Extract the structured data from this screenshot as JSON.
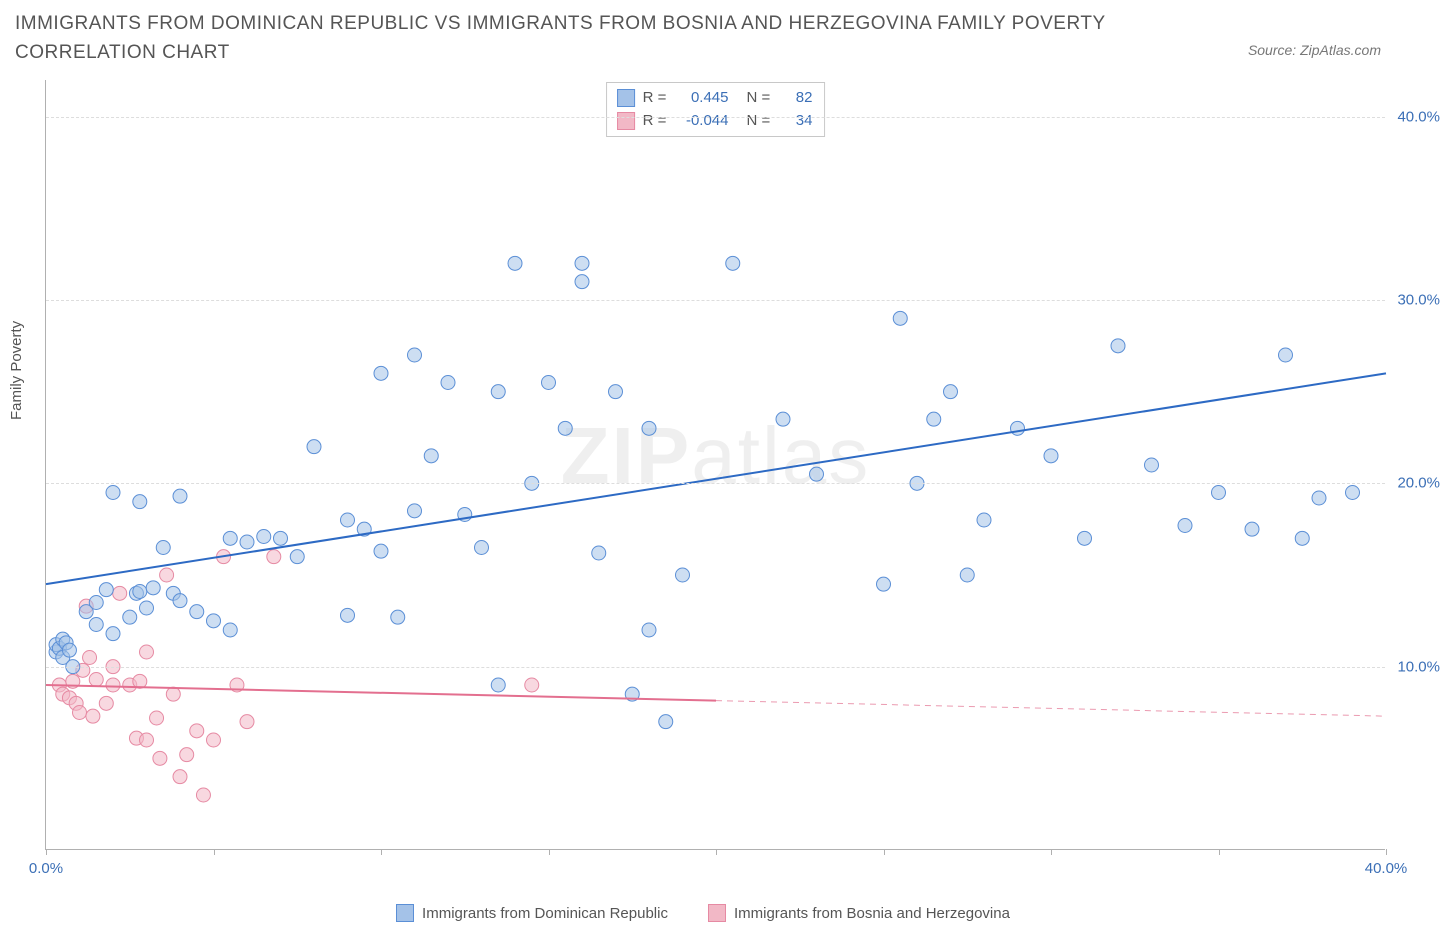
{
  "title": "IMMIGRANTS FROM DOMINICAN REPUBLIC VS IMMIGRANTS FROM BOSNIA AND HERZEGOVINA FAMILY POVERTY CORRELATION CHART",
  "source": "Source: ZipAtlas.com",
  "ylabel": "Family Poverty",
  "watermark_bold": "ZIP",
  "watermark_rest": "atlas",
  "chart": {
    "type": "scatter",
    "xlim": [
      0,
      40
    ],
    "ylim": [
      0,
      42
    ],
    "ytick_values": [
      10,
      20,
      30,
      40
    ],
    "ytick_labels": [
      "10.0%",
      "20.0%",
      "30.0%",
      "40.0%"
    ],
    "xtick_values": [
      0,
      5,
      10,
      15,
      20,
      25,
      30,
      35,
      40
    ],
    "xtick_labels": {
      "0": "0.0%",
      "40": "40.0%"
    },
    "background_color": "#ffffff",
    "grid_color": "#dddddd",
    "axis_color": "#b0b0b0",
    "marker_radius": 7,
    "marker_opacity": 0.55,
    "line_width": 2
  },
  "series": [
    {
      "name": "Immigrants from Dominican Republic",
      "color_fill": "#a4c2e8",
      "color_stroke": "#5b8fd6",
      "color_line": "#2d6ac4",
      "R": "0.445",
      "N": "82",
      "trend": {
        "x1": 0,
        "y1": 14.5,
        "x2": 40,
        "y2": 26.0,
        "solid_to_x": 40
      },
      "points": [
        [
          0.3,
          10.8
        ],
        [
          0.3,
          11.2
        ],
        [
          0.4,
          11.0
        ],
        [
          0.5,
          10.5
        ],
        [
          0.5,
          11.5
        ],
        [
          0.6,
          11.3
        ],
        [
          0.7,
          10.9
        ],
        [
          0.8,
          10
        ],
        [
          1.2,
          13.0
        ],
        [
          1.5,
          12.3
        ],
        [
          1.5,
          13.5
        ],
        [
          1.8,
          14.2
        ],
        [
          2.0,
          11.8
        ],
        [
          2.0,
          19.5
        ],
        [
          2.5,
          12.7
        ],
        [
          2.7,
          14.0
        ],
        [
          2.8,
          14.1
        ],
        [
          2.8,
          19.0
        ],
        [
          3.0,
          13.2
        ],
        [
          3.2,
          14.3
        ],
        [
          3.5,
          16.5
        ],
        [
          3.8,
          14.0
        ],
        [
          4.0,
          13.6
        ],
        [
          4.0,
          19.3
        ],
        [
          4.5,
          13.0
        ],
        [
          5.0,
          12.5
        ],
        [
          5.5,
          17.0
        ],
        [
          5.5,
          12.0
        ],
        [
          6.0,
          16.8
        ],
        [
          6.5,
          17.1
        ],
        [
          7.0,
          17.0
        ],
        [
          7.5,
          16.0
        ],
        [
          8.0,
          22.0
        ],
        [
          9.0,
          18.0
        ],
        [
          9.0,
          12.8
        ],
        [
          9.5,
          17.5
        ],
        [
          10.0,
          16.3
        ],
        [
          10.0,
          26.0
        ],
        [
          10.5,
          12.7
        ],
        [
          11.0,
          18.5
        ],
        [
          11.0,
          27.0
        ],
        [
          11.5,
          21.5
        ],
        [
          12.0,
          25.5
        ],
        [
          12.5,
          18.3
        ],
        [
          13.0,
          16.5
        ],
        [
          13.5,
          25.0
        ],
        [
          13.5,
          9.0
        ],
        [
          14.0,
          32.0
        ],
        [
          14.5,
          20.0
        ],
        [
          15.0,
          25.5
        ],
        [
          15.5,
          23.0
        ],
        [
          16.0,
          31.0
        ],
        [
          16.0,
          32.0
        ],
        [
          16.5,
          16.2
        ],
        [
          17.0,
          25.0
        ],
        [
          17.5,
          8.5
        ],
        [
          18.0,
          12.0
        ],
        [
          18.0,
          23.0
        ],
        [
          18.5,
          7.0
        ],
        [
          19.0,
          15.0
        ],
        [
          20.5,
          32.0
        ],
        [
          22.0,
          23.5
        ],
        [
          23.0,
          20.5
        ],
        [
          25.0,
          14.5
        ],
        [
          25.5,
          29.0
        ],
        [
          26.0,
          20.0
        ],
        [
          26.5,
          23.5
        ],
        [
          27.0,
          25.0
        ],
        [
          27.5,
          15.0
        ],
        [
          28.0,
          18.0
        ],
        [
          29.0,
          23.0
        ],
        [
          30.0,
          21.5
        ],
        [
          31.0,
          17.0
        ],
        [
          32.0,
          27.5
        ],
        [
          33.0,
          21.0
        ],
        [
          34.0,
          17.7
        ],
        [
          35.0,
          19.5
        ],
        [
          36.0,
          17.5
        ],
        [
          37.0,
          27.0
        ],
        [
          37.5,
          17.0
        ],
        [
          38.0,
          19.2
        ],
        [
          39.0,
          19.5
        ]
      ]
    },
    {
      "name": "Immigrants from Bosnia and Herzegovina",
      "color_fill": "#f2b8c6",
      "color_stroke": "#e68aa3",
      "color_line": "#e36f8f",
      "R": "-0.044",
      "N": "34",
      "trend": {
        "x1": 0,
        "y1": 9.0,
        "x2": 40,
        "y2": 7.3,
        "solid_to_x": 20
      },
      "points": [
        [
          0.4,
          9.0
        ],
        [
          0.5,
          8.5
        ],
        [
          0.7,
          8.3
        ],
        [
          0.8,
          9.2
        ],
        [
          0.9,
          8.0
        ],
        [
          1.0,
          7.5
        ],
        [
          1.1,
          9.8
        ],
        [
          1.2,
          13.3
        ],
        [
          1.3,
          10.5
        ],
        [
          1.4,
          7.3
        ],
        [
          1.5,
          9.3
        ],
        [
          1.8,
          8.0
        ],
        [
          2.0,
          10.0
        ],
        [
          2.0,
          9.0
        ],
        [
          2.2,
          14.0
        ],
        [
          2.5,
          9.0
        ],
        [
          2.7,
          6.1
        ],
        [
          2.8,
          9.2
        ],
        [
          3.0,
          10.8
        ],
        [
          3.0,
          6.0
        ],
        [
          3.3,
          7.2
        ],
        [
          3.4,
          5.0
        ],
        [
          3.6,
          15.0
        ],
        [
          3.8,
          8.5
        ],
        [
          4.0,
          4.0
        ],
        [
          4.2,
          5.2
        ],
        [
          4.5,
          6.5
        ],
        [
          4.7,
          3.0
        ],
        [
          5.0,
          6.0
        ],
        [
          5.3,
          16.0
        ],
        [
          5.7,
          9.0
        ],
        [
          6.0,
          7.0
        ],
        [
          6.8,
          16.0
        ],
        [
          14.5,
          9.0
        ]
      ]
    }
  ],
  "legend_box": {
    "r_label": "R = ",
    "n_label": "N = "
  }
}
